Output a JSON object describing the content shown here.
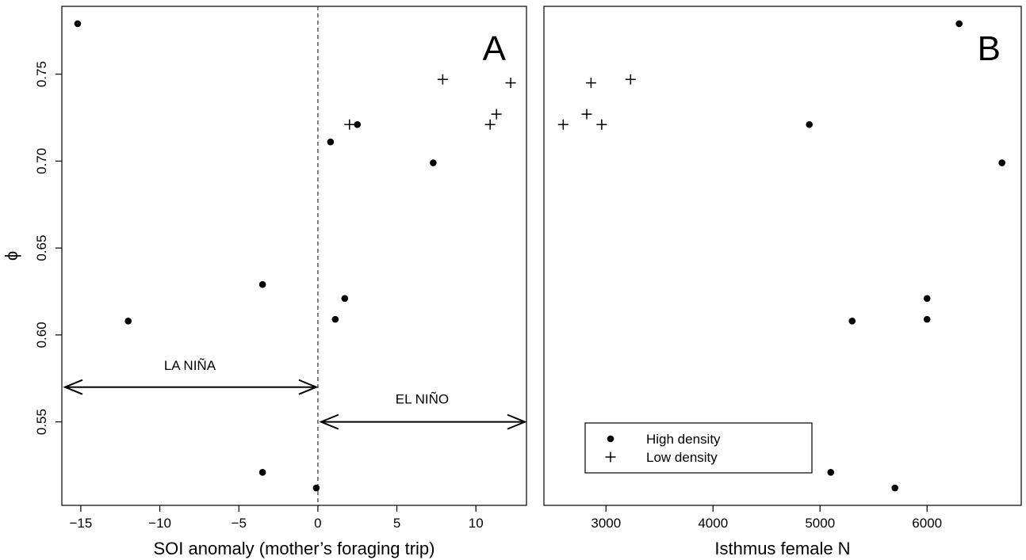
{
  "chart_data": [
    {
      "type": "scatter",
      "panel_letter": "A",
      "xlabel": "SOI anomaly (mother’s foraging trip)",
      "ylabel": "ϕ",
      "xlim": [
        -16.2,
        13.2
      ],
      "ylim": [
        0.502,
        0.789
      ],
      "x_ticks": [
        -15,
        -10,
        -5,
        0,
        5,
        10
      ],
      "x_tick_labels": [
        "−15",
        "−10",
        "−5",
        "0",
        "5",
        "10"
      ],
      "y_ticks": [
        0.55,
        0.6,
        0.65,
        0.7,
        0.75
      ],
      "y_tick_labels": [
        "0.55",
        "0.60",
        "0.65",
        "0.70",
        "0.75"
      ],
      "grid": false,
      "reference_line": {
        "axis": "x",
        "value": 0,
        "style": "dashed"
      },
      "annotations": [
        {
          "text": "LA NIÑA",
          "x_start": -16.2,
          "x_end": 0,
          "y": 0.57,
          "label_y": 0.58
        },
        {
          "text": "EL NIÑO",
          "x_start": 0,
          "x_end": 13.2,
          "y": 0.55,
          "label_y": 0.5605
        }
      ],
      "series": [
        {
          "marker": "dot",
          "points": [
            [
              -15.2,
              0.779
            ],
            [
              -12.0,
              0.608
            ],
            [
              -3.5,
              0.629
            ],
            [
              -3.5,
              0.521
            ],
            [
              -0.1,
              0.512
            ],
            [
              0.8,
              0.711
            ],
            [
              1.1,
              0.609
            ],
            [
              1.7,
              0.621
            ],
            [
              2.5,
              0.721
            ],
            [
              7.3,
              0.699
            ]
          ]
        },
        {
          "marker": "plus",
          "points": [
            [
              2.0,
              0.721
            ],
            [
              7.9,
              0.747
            ],
            [
              11.3,
              0.727
            ],
            [
              10.9,
              0.721
            ],
            [
              12.2,
              0.745
            ]
          ]
        }
      ]
    },
    {
      "type": "scatter",
      "panel_letter": "B",
      "xlabel": "Isthmus female N",
      "xlim": [
        2420,
        6880
      ],
      "ylim": [
        0.502,
        0.789
      ],
      "x_ticks": [
        3000,
        4000,
        5000,
        6000
      ],
      "x_tick_labels": [
        "3000",
        "4000",
        "5000",
        "6000"
      ],
      "grid": false,
      "legend": {
        "position": "bottom-left",
        "entries": [
          {
            "label": "High density",
            "marker": "dot"
          },
          {
            "label": "Low density",
            "marker": "plus"
          }
        ]
      },
      "series": [
        {
          "name": "High density",
          "marker": "dot",
          "points": [
            [
              6300,
              0.779
            ],
            [
              4900,
              0.721
            ],
            [
              6700,
              0.699
            ],
            [
              6000,
              0.621
            ],
            [
              6000,
              0.609
            ],
            [
              5300,
              0.608
            ],
            [
              5100,
              0.521
            ],
            [
              5700,
              0.512
            ]
          ]
        },
        {
          "name": "Low density",
          "marker": "plus",
          "points": [
            [
              2600,
              0.721
            ],
            [
              2820,
              0.727
            ],
            [
              2860,
              0.745
            ],
            [
              2960,
              0.721
            ],
            [
              3230,
              0.747
            ]
          ]
        }
      ]
    }
  ]
}
